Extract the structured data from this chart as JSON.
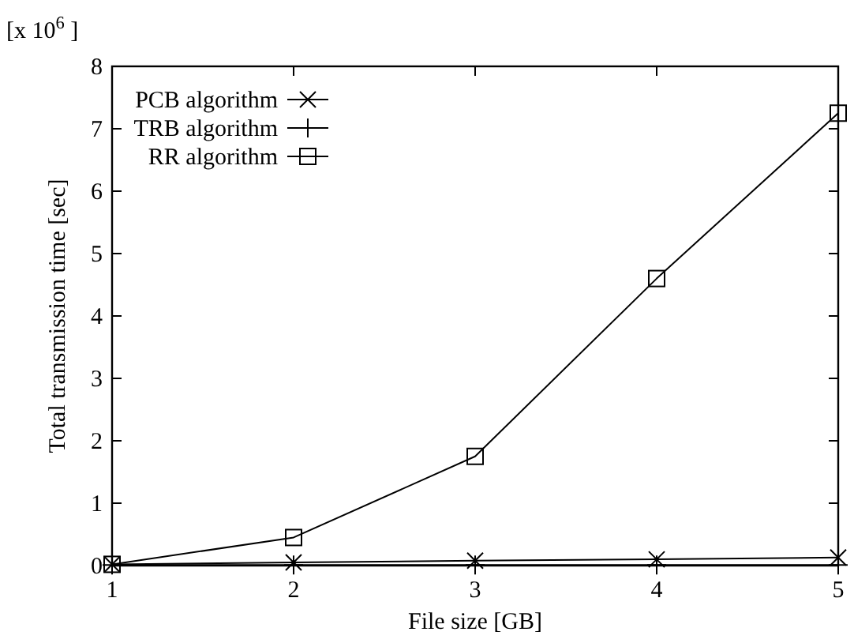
{
  "chart_data": {
    "type": "line",
    "xlabel": "File size [GB]",
    "ylabel": "Total transmission time [sec]",
    "annotations": [
      "[x 10$^{6}$ ]"
    ],
    "x": [
      1,
      2,
      3,
      4,
      5
    ],
    "xlim": [
      1,
      5
    ],
    "xticks": [
      1,
      2,
      3,
      4,
      5
    ],
    "ylim": [
      0,
      8
    ],
    "yticks": [
      0,
      1,
      2,
      3,
      4,
      5,
      6,
      7,
      8
    ],
    "grid": false,
    "legend": "top left",
    "series": [
      {
        "name": "PCB algorithm",
        "color": "#000000",
        "marker": "cross",
        "values": [
          0.02,
          0.05,
          0.08,
          0.1,
          0.13
        ]
      },
      {
        "name": "TRB algorithm",
        "color": "#000000",
        "marker": "plus",
        "values": [
          0.01,
          0.01,
          0.01,
          0.01,
          0.01
        ]
      },
      {
        "name": "RR algorithm",
        "color": "#000000",
        "marker": "square",
        "values": [
          0.02,
          0.45,
          1.75,
          4.6,
          7.25
        ]
      }
    ]
  }
}
